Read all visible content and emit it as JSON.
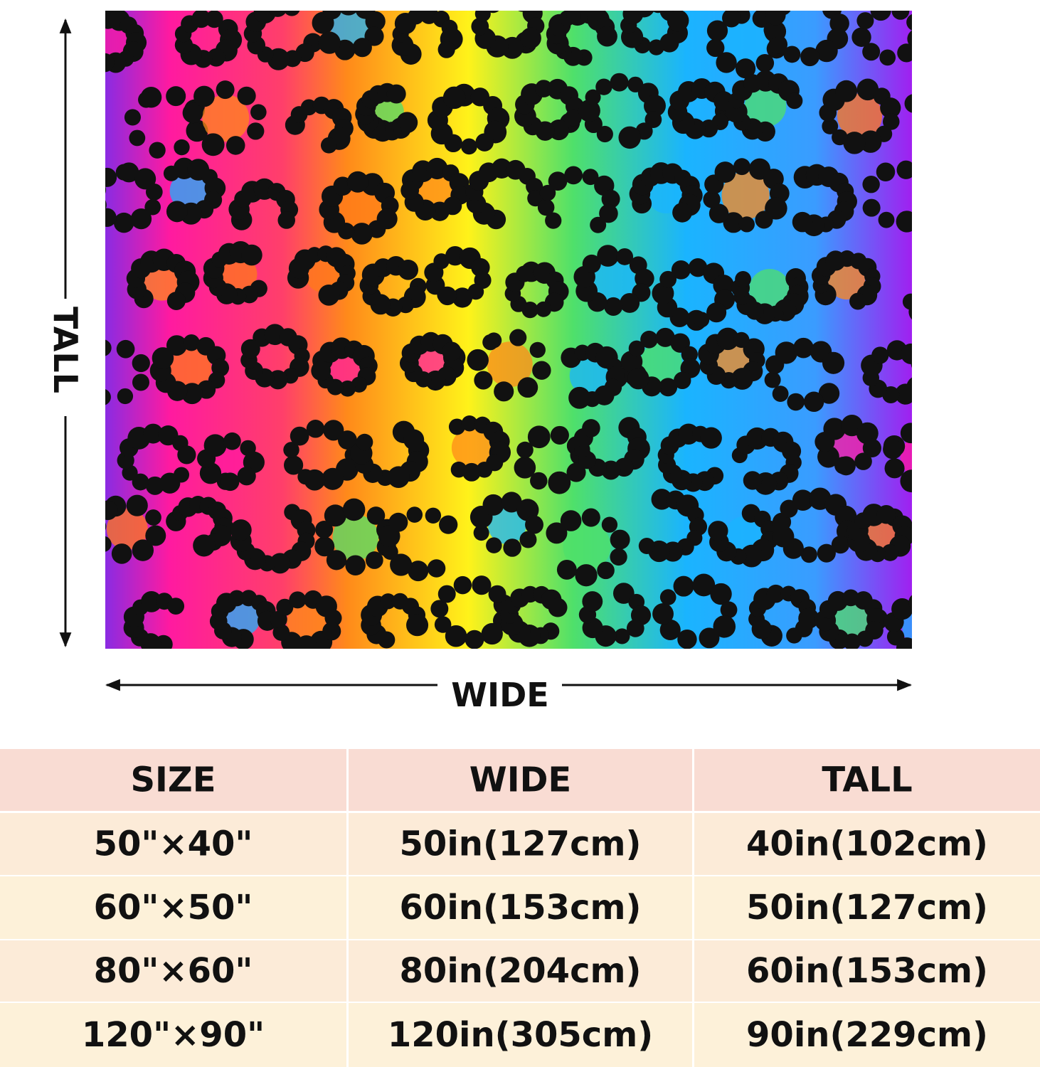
{
  "dimensions": {
    "tall": "TALL",
    "wide": "WIDE"
  },
  "table": {
    "header": [
      "SIZE",
      "WIDE",
      "TALL"
    ],
    "rows": [
      [
        "50\"×40\"",
        "50in(127cm)",
        "40in(102cm)"
      ],
      [
        "60\"×50\"",
        "60in(153cm)",
        "50in(127cm)"
      ],
      [
        "80\"×60\"",
        "80in(204cm)",
        "60in(153cm)"
      ],
      [
        "120\"×90\"",
        "120in(305cm)",
        "90in(229cm)"
      ]
    ]
  }
}
